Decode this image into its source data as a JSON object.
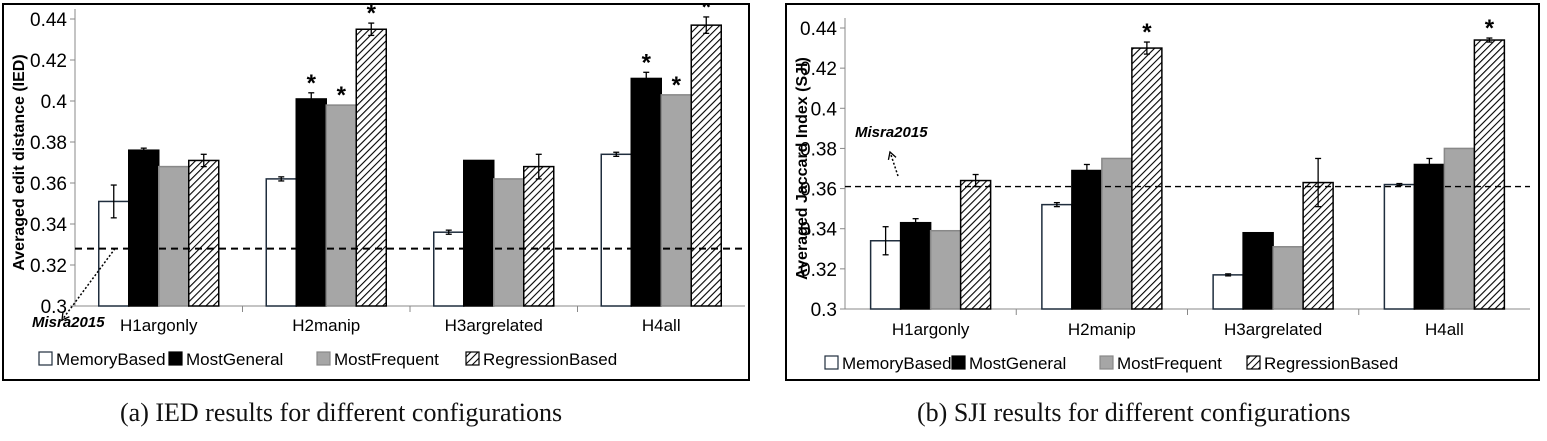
{
  "chart_data": [
    {
      "type": "bar",
      "title": "",
      "caption": "(a)  IED results for different configurations",
      "xlabel": "",
      "ylabel": "Averaged edit distance (IED)",
      "ylim": [
        0.3,
        0.44
      ],
      "yticks": [
        "0.3",
        "0.32",
        "0.34",
        "0.36",
        "0.38",
        "0.4",
        "0.42",
        "0.44"
      ],
      "categories": [
        "H1argonly",
        "H2manip",
        "H3argrelated",
        "H4all"
      ],
      "series": [
        {
          "name": "MemoryBased",
          "values": [
            0.351,
            0.362,
            0.336,
            0.374
          ],
          "errors": [
            0.008,
            0.001,
            0.001,
            0.001
          ],
          "significant": [
            false,
            false,
            false,
            false
          ]
        },
        {
          "name": "MostGeneral",
          "values": [
            0.376,
            0.401,
            0.371,
            0.411
          ],
          "errors": [
            0.001,
            0.003,
            0,
            0.003
          ],
          "significant": [
            false,
            true,
            false,
            true
          ]
        },
        {
          "name": "MostFrequent",
          "values": [
            0.368,
            0.398,
            0.362,
            0.403
          ],
          "errors": [
            0,
            0,
            0,
            0
          ],
          "significant": [
            false,
            true,
            false,
            true
          ]
        },
        {
          "name": "RegressionBased",
          "values": [
            0.371,
            0.435,
            0.368,
            0.437
          ],
          "errors": [
            0.003,
            0.003,
            0.006,
            0.004
          ],
          "significant": [
            false,
            true,
            false,
            true
          ]
        }
      ],
      "baseline": {
        "label": "Misra2015",
        "value": 0.328
      },
      "significance_marker": "*",
      "legend_position": "bottom",
      "grid": false
    },
    {
      "type": "bar",
      "title": "",
      "caption": "(b)  SJI results for different configurations",
      "xlabel": "",
      "ylabel": "Averaged Jaccard Index (SJI)",
      "ylim": [
        0.3,
        0.44
      ],
      "yticks": [
        "0.3",
        "0.32",
        "0.34",
        "0.36",
        "0.38",
        "0.4",
        "0.42",
        "0.44"
      ],
      "categories": [
        "H1argonly",
        "H2manip",
        "H3argrelated",
        "H4all"
      ],
      "series": [
        {
          "name": "MemoryBased",
          "values": [
            0.334,
            0.352,
            0.317,
            0.362
          ],
          "errors": [
            0.007,
            0.001,
            0.0005,
            0.0005
          ],
          "significant": [
            false,
            false,
            false,
            false
          ]
        },
        {
          "name": "MostGeneral",
          "values": [
            0.343,
            0.369,
            0.338,
            0.372
          ],
          "errors": [
            0.002,
            0.003,
            0,
            0.003
          ],
          "significant": [
            false,
            false,
            false,
            false
          ]
        },
        {
          "name": "MostFrequent",
          "values": [
            0.339,
            0.375,
            0.331,
            0.38
          ],
          "errors": [
            0,
            0,
            0,
            0
          ],
          "significant": [
            false,
            false,
            false,
            false
          ]
        },
        {
          "name": "RegressionBased",
          "values": [
            0.364,
            0.43,
            0.363,
            0.434
          ],
          "errors": [
            0.003,
            0.003,
            0.012,
            0.001
          ],
          "significant": [
            false,
            true,
            false,
            true
          ]
        }
      ],
      "baseline": {
        "label": "Misra2015",
        "value": 0.361
      },
      "significance_marker": "*",
      "legend_position": "bottom",
      "grid": false
    }
  ],
  "colors": {
    "MemoryBased": "#ffffff",
    "MostGeneral": "#000000",
    "MostFrequent": "#a6a6a6",
    "RegressionBased": "hatch"
  }
}
